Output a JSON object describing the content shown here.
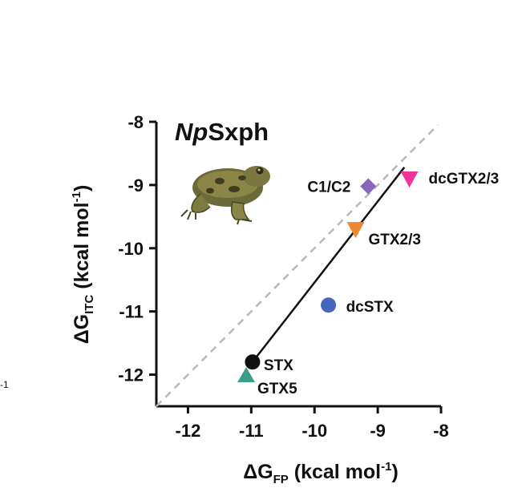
{
  "chart_data": {
    "type": "scatter",
    "title_italic": "Np",
    "title_rest": "Sxph",
    "xlabel": {
      "prefix": "ΔG",
      "sub": "FP",
      "unit_open": " (kcal mol",
      "sup": "-1",
      "unit_close": ")"
    },
    "ylabel": {
      "prefix": "ΔG",
      "sub": "ITC",
      "unit_open": " (kcal mol",
      "sup": "-1",
      "unit_close": ")"
    },
    "xlim": [
      -12.5,
      -8
    ],
    "ylim": [
      -12.5,
      -8
    ],
    "x_ticks": [
      -12,
      -11,
      -10,
      -9,
      -8
    ],
    "y_ticks": [
      -8,
      -9,
      -10,
      -11,
      -12
    ],
    "x_tick_labels": [
      "-12",
      "-11",
      "-10",
      "-9",
      "-8"
    ],
    "y_tick_labels": [
      "-8",
      "-9",
      "-10",
      "-11",
      "-12"
    ],
    "points": [
      {
        "label": "STX",
        "x": -10.98,
        "y": -11.8,
        "marker": "circle",
        "color": "#111111"
      },
      {
        "label": "GTX5",
        "x": -11.08,
        "y": -12.02,
        "marker": "triangle-up",
        "color": "#3a9e8c"
      },
      {
        "label": "dcSTX",
        "x": -9.78,
        "y": -10.9,
        "marker": "circle",
        "color": "#4466bb"
      },
      {
        "label": "GTX2/3",
        "x": -9.35,
        "y": -9.7,
        "marker": "triangle-down",
        "color": "#ee8833"
      },
      {
        "label": "C1/C2",
        "x": -9.15,
        "y": -9.02,
        "marker": "diamond",
        "color": "#8866bb"
      },
      {
        "label": "dcGTX2/3",
        "x": -8.5,
        "y": -8.9,
        "marker": "triangle-down",
        "color": "#ee3399"
      }
    ],
    "fit_line": {
      "x": [
        -10.98,
        -8.58
      ],
      "y": [
        -11.8,
        -8.72
      ]
    },
    "identity_line": {
      "x": [
        -12.5,
        -8.05
      ],
      "y": [
        -12.5,
        -8.05
      ]
    },
    "image_icon": "frog-illustration",
    "stray_text": "-1"
  }
}
